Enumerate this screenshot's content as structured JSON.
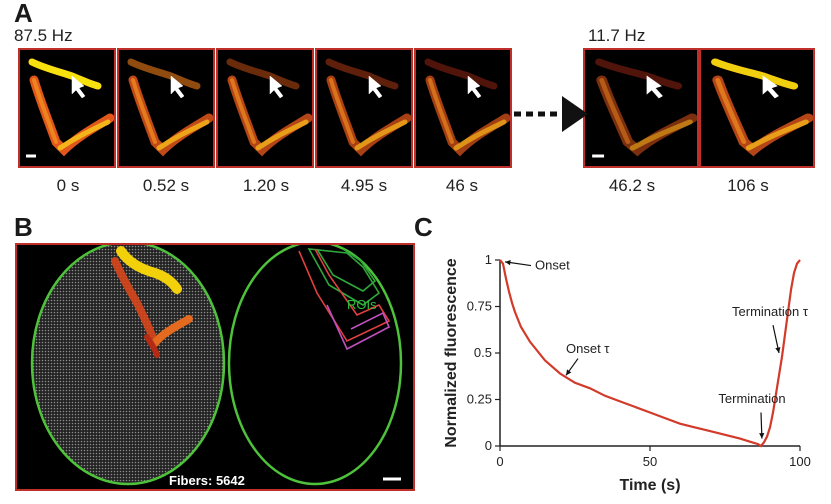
{
  "figure": {
    "panel_a": {
      "letter": "A",
      "freq_left": "87.5 Hz",
      "freq_right": "11.7 Hz",
      "times_left": [
        "0 s",
        "0.52 s",
        "1.20 s",
        "4.95 s",
        "46 s"
      ],
      "times_right": [
        "46.2 s",
        "106 s"
      ]
    },
    "panel_b": {
      "letter": "B",
      "rois_label": "ROIs",
      "fibers_label": "Fibers: 5642"
    },
    "panel_c": {
      "letter": "C",
      "ylabel": "Normalized fluorescence",
      "xlabel": "Time (s)",
      "xticks": [
        "0",
        "50",
        "100"
      ],
      "yticks": [
        "0",
        "0.25",
        "0.5",
        "0.75",
        "1"
      ],
      "annotations": {
        "onset": "Onset",
        "onset_tau": "Onset τ",
        "termination": "Termination",
        "termination_tau": "Termination τ"
      }
    }
  },
  "chart_data": {
    "type": "line",
    "xlabel": "Time (s)",
    "ylabel": "Normalized fluorescence",
    "xlim": [
      0,
      100
    ],
    "ylim": [
      0,
      1
    ],
    "series": [
      {
        "x": [
          0,
          1,
          2,
          3,
          4,
          5,
          7,
          10,
          15,
          20,
          25,
          30,
          35,
          40,
          45,
          50,
          55,
          60,
          65,
          70,
          75,
          80,
          84,
          86,
          87,
          88,
          89,
          90,
          91,
          92,
          93,
          94,
          95,
          96,
          97,
          98,
          99,
          100
        ],
        "values": [
          1.0,
          0.98,
          0.9,
          0.83,
          0.77,
          0.72,
          0.64,
          0.56,
          0.46,
          0.39,
          0.34,
          0.31,
          0.27,
          0.24,
          0.21,
          0.18,
          0.15,
          0.12,
          0.1,
          0.08,
          0.06,
          0.04,
          0.02,
          0.01,
          0.0,
          0.02,
          0.05,
          0.1,
          0.18,
          0.28,
          0.38,
          0.48,
          0.6,
          0.72,
          0.84,
          0.93,
          0.98,
          1.0
        ]
      }
    ],
    "color": "#d23a2a"
  }
}
